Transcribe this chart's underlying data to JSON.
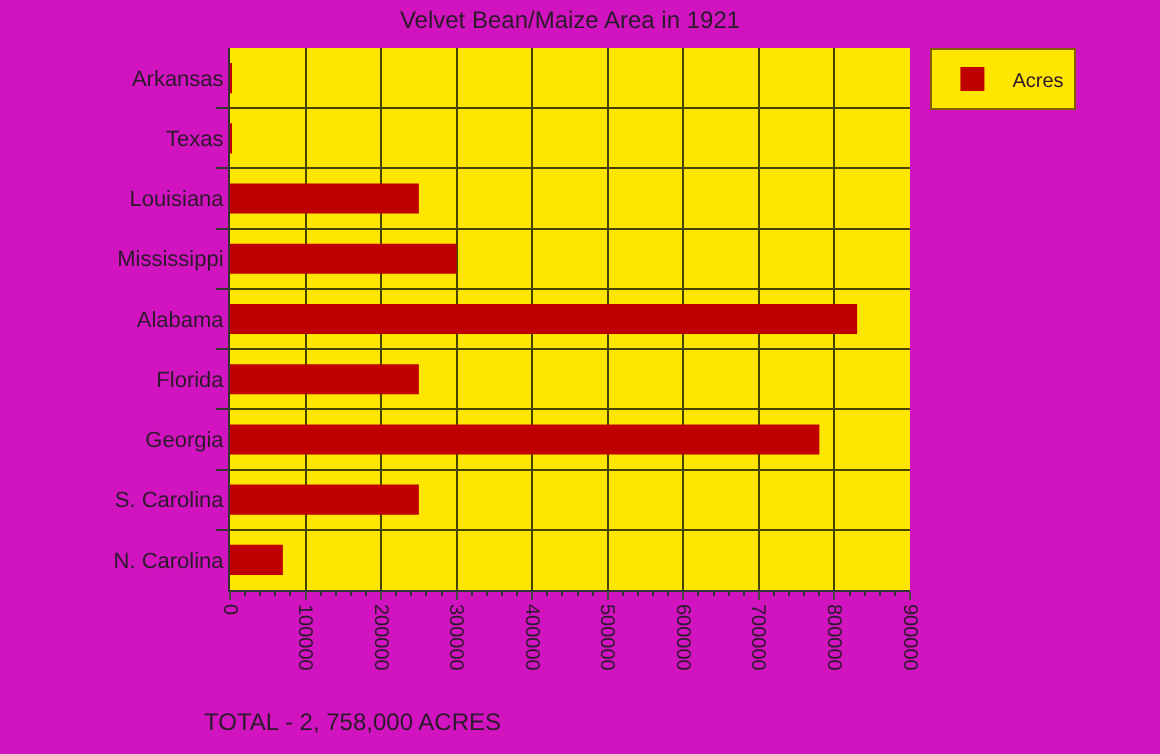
{
  "chart_data": {
    "type": "bar",
    "orientation": "horizontal",
    "title": "Velvet Bean/Maize Area in 1921",
    "categories": [
      "Arkansas",
      "Texas",
      "Louisiana",
      "Mississippi",
      "Alabama",
      "Florida",
      "Georgia",
      "S. Carolina",
      "N. Carolina"
    ],
    "series": [
      {
        "name": "Acres",
        "color": "#c00000",
        "values": [
          2000,
          1000,
          250000,
          300000,
          830000,
          250000,
          780000,
          250000,
          70000
        ]
      }
    ],
    "xlim": [
      0,
      900000
    ],
    "xticks": [
      0,
      100000,
      200000,
      300000,
      400000,
      500000,
      600000,
      700000,
      800000,
      900000
    ],
    "annotations": [
      "TOTAL - 2, 758,000 ACRES"
    ],
    "grid": true,
    "legend": "top right"
  }
}
